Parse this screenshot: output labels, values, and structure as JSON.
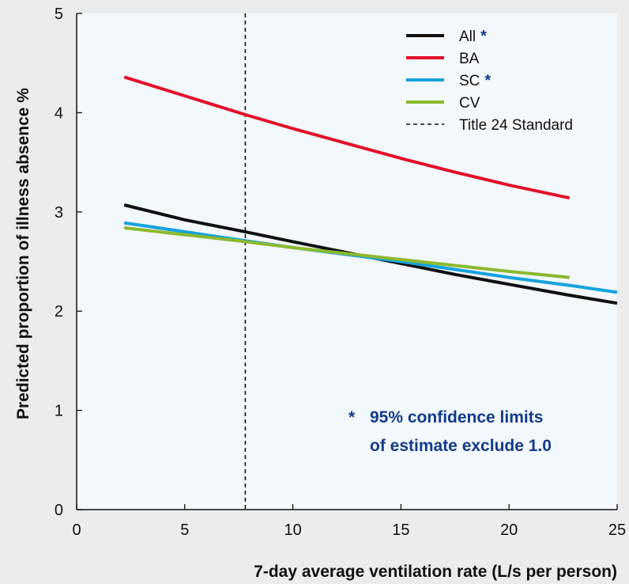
{
  "chart_data": {
    "type": "line",
    "xlabel": "7-day average ventilation rate (L/s per person)",
    "ylabel": "Predicted proportion of illness absence %",
    "xlim": [
      0,
      25
    ],
    "ylim": [
      0,
      5
    ],
    "x_ticks": [
      "0",
      "5",
      "10",
      "15",
      "20",
      "25"
    ],
    "y_ticks": [
      "0",
      "1",
      "2",
      "3",
      "4",
      "5"
    ],
    "grid": false,
    "legend_position": "top-right",
    "series": [
      {
        "name": "All",
        "star": "*",
        "color": "#111111",
        "style": "solid",
        "x": [
          2.2,
          5,
          7.8,
          10,
          12.5,
          15,
          17.5,
          20,
          22.8,
          25
        ],
        "y": [
          3.07,
          2.92,
          2.8,
          2.7,
          2.59,
          2.48,
          2.37,
          2.27,
          2.16,
          2.08
        ]
      },
      {
        "name": "BA",
        "star": "",
        "color": "#e2102a",
        "style": "solid",
        "x": [
          2.2,
          5,
          7.8,
          10,
          12.5,
          15,
          17.5,
          20,
          22.8
        ],
        "y": [
          4.36,
          4.17,
          3.98,
          3.84,
          3.69,
          3.54,
          3.4,
          3.27,
          3.14
        ]
      },
      {
        "name": "SC",
        "star": "*",
        "color": "#15a2dc",
        "style": "solid",
        "x": [
          2.2,
          5,
          7.8,
          10,
          12.5,
          15,
          17.5,
          20,
          22.8,
          25
        ],
        "y": [
          2.89,
          2.8,
          2.71,
          2.64,
          2.57,
          2.5,
          2.42,
          2.34,
          2.26,
          2.19
        ]
      },
      {
        "name": "CV",
        "star": "",
        "color": "#8db92e",
        "style": "solid",
        "x": [
          2.2,
          5,
          7.8,
          10,
          12.5,
          15,
          17.5,
          20,
          22.8
        ],
        "y": [
          2.84,
          2.77,
          2.7,
          2.64,
          2.58,
          2.52,
          2.46,
          2.4,
          2.34
        ]
      }
    ],
    "reference_line": {
      "name": "Title 24 Standard",
      "x": 7.8,
      "color": "#111111",
      "style": "dashed"
    },
    "annotation": {
      "star": "*",
      "lines": [
        "95% confidence limits",
        "of estimate exclude 1.0"
      ],
      "color": "#133a8a"
    },
    "colors": {
      "plot_background": "#f3f8fc",
      "page_background": "#ececec",
      "star_color": "#133a8a"
    }
  }
}
